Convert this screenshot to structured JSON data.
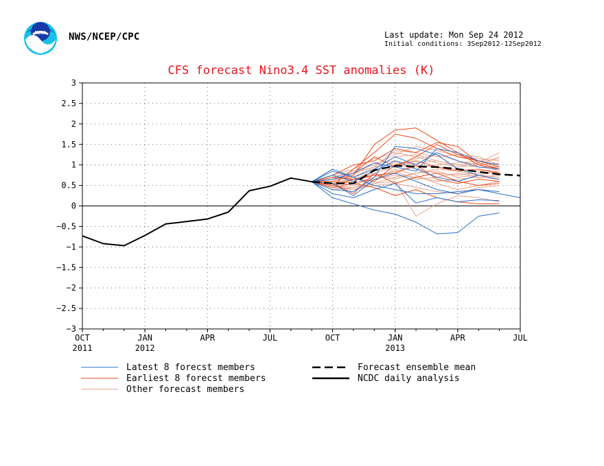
{
  "header": {
    "agency": "NWS/NCEP/CPC",
    "last_update": "Last update: Mon Sep 24 2012",
    "initial_conditions": "Initial conditions: 3Sep2012-12Sep2012",
    "logo_text": "NOAA"
  },
  "colors": {
    "title": "#e8141c",
    "latest": "#2a6fc9",
    "earliest": "#ee4a1a",
    "other": "#e6a28a",
    "mean": "#000000",
    "analysis": "#000000"
  },
  "chart_data": {
    "type": "line",
    "title": "CFS forecast Nino3.4 SST anomalies (K)",
    "xlim": [
      0,
      21
    ],
    "ylim": [
      -3,
      3
    ],
    "yticks": [
      3,
      2.5,
      2,
      1.5,
      1,
      0.5,
      0,
      -0.5,
      -1,
      -1.5,
      -2,
      -2.5,
      -3
    ],
    "xticks": [
      {
        "x": 0,
        "label": "OCT",
        "year": "2011"
      },
      {
        "x": 3,
        "label": "JAN",
        "year": "2012"
      },
      {
        "x": 6,
        "label": "APR",
        "year": ""
      },
      {
        "x": 9,
        "label": "JUL",
        "year": ""
      },
      {
        "x": 12,
        "label": "OCT",
        "year": ""
      },
      {
        "x": 15,
        "label": "JAN",
        "year": "2013"
      },
      {
        "x": 18,
        "label": "APR",
        "year": ""
      },
      {
        "x": 21,
        "label": "JUL",
        "year": ""
      }
    ],
    "grid": true,
    "legend": [
      {
        "label": "Latest 8 forecst members",
        "key": "latest",
        "style": "solid-thin"
      },
      {
        "label": "Earliest 8 forecst members",
        "key": "earliest",
        "style": "solid-thin"
      },
      {
        "label": "Other forecast members",
        "key": "other",
        "style": "solid-thin"
      },
      {
        "label": "Forecast ensemble mean",
        "key": "mean",
        "style": "dashed-thick"
      },
      {
        "label": "NCDC daily analysis",
        "key": "analysis",
        "style": "solid-thick"
      }
    ],
    "analysis": {
      "x": [
        0,
        1,
        2,
        3,
        4,
        5,
        6,
        7,
        8,
        9,
        10,
        11
      ],
      "y": [
        -0.73,
        -0.92,
        -0.97,
        -0.72,
        -0.44,
        -0.38,
        -0.32,
        -0.15,
        0.37,
        0.48,
        0.68,
        0.59
      ]
    },
    "mean": {
      "x": [
        11,
        12,
        13,
        14,
        15,
        16,
        17,
        18,
        19,
        20,
        21
      ],
      "y": [
        0.59,
        0.55,
        0.55,
        0.87,
        0.98,
        0.96,
        0.95,
        0.9,
        0.83,
        0.77,
        0.74
      ]
    },
    "members_x": [
      11,
      12,
      13,
      14,
      15,
      16,
      17,
      18,
      19,
      20,
      21
    ],
    "latest": [
      [
        0.59,
        0.2,
        0.05,
        -0.1,
        -0.2,
        -0.4,
        -0.68,
        -0.65,
        -0.25,
        -0.17
      ],
      [
        0.59,
        0.9,
        0.7,
        0.5,
        0.4,
        0.3,
        0.3,
        0.35,
        0.4,
        0.3,
        0.2
      ],
      [
        0.59,
        0.3,
        0.2,
        0.4,
        0.55,
        0.07,
        0.2,
        0.1,
        0.15,
        0.13
      ],
      [
        0.59,
        0.75,
        0.6,
        0.85,
        1.1,
        0.9,
        0.7,
        0.6,
        0.75,
        0.65
      ],
      [
        0.59,
        0.4,
        0.35,
        0.7,
        1.45,
        1.4,
        1.25,
        0.9,
        0.75
      ],
      [
        0.59,
        0.85,
        0.7,
        0.9,
        1.2,
        1.0,
        1.3,
        1.1,
        0.95,
        0.9
      ],
      [
        0.59,
        0.55,
        0.25,
        0.65,
        0.8,
        0.6,
        0.4,
        0.3,
        0.4,
        0.35
      ],
      [
        0.59,
        0.65,
        0.8,
        1.05,
        0.95,
        0.85,
        1.4,
        1.3,
        1.1,
        1.0
      ]
    ],
    "earliest": [
      [
        0.59,
        0.6,
        0.75,
        1.5,
        1.85,
        1.9,
        1.6,
        1.3,
        1.0,
        0.9
      ],
      [
        0.59,
        0.5,
        0.9,
        1.3,
        1.75,
        1.65,
        1.4,
        1.2,
        1.1,
        0.95
      ],
      [
        0.59,
        0.7,
        0.65,
        0.6,
        1.0,
        1.1,
        0.95,
        0.85,
        0.9,
        0.8
      ],
      [
        0.59,
        0.45,
        0.55,
        0.45,
        0.25,
        0.4,
        0.2,
        0.1,
        0.05,
        0.05
      ],
      [
        0.59,
        0.65,
        0.8,
        1.2,
        0.95,
        1.2,
        1.5,
        1.25,
        1.1,
        0.95
      ],
      [
        0.59,
        0.55,
        0.3,
        0.8,
        0.55,
        0.7,
        0.8,
        0.6,
        0.5,
        0.55
      ],
      [
        0.59,
        0.75,
        1.0,
        1.1,
        1.4,
        1.3,
        1.55,
        1.45,
        1.05,
        0.9
      ],
      [
        0.59,
        0.5,
        0.65,
        0.75,
        0.8,
        1.0,
        0.65,
        0.55,
        0.65,
        0.6
      ]
    ],
    "other": [
      [
        0.59,
        0.55,
        0.7,
        0.9,
        1.2,
        1.25,
        1.1,
        1.0,
        1.05,
        1.3
      ],
      [
        0.59,
        0.6,
        0.5,
        0.7,
        0.85,
        0.95,
        1.0,
        1.05,
        1.1,
        1.15
      ],
      [
        0.59,
        0.45,
        0.4,
        0.55,
        0.6,
        -0.25,
        0.05,
        0.25,
        0.2,
        0.1
      ],
      [
        0.59,
        0.7,
        0.8,
        0.95,
        1.35,
        1.3,
        1.2,
        1.25,
        1.2,
        1.0
      ],
      [
        0.59,
        0.5,
        0.6,
        0.75,
        0.65,
        0.8,
        0.85,
        0.7,
        0.75,
        0.85
      ],
      [
        0.59,
        0.65,
        0.75,
        1.05,
        1.1,
        1.0,
        0.95,
        0.9,
        0.85,
        0.9
      ],
      [
        0.59,
        0.4,
        0.45,
        0.6,
        0.9,
        0.75,
        0.55,
        0.4,
        0.5,
        0.6
      ],
      [
        0.59,
        0.55,
        0.65,
        0.85,
        1.0,
        1.15,
        1.25,
        1.1,
        1.0,
        1.05
      ],
      [
        0.59,
        0.6,
        0.55,
        0.65,
        0.75,
        0.7,
        0.6,
        0.65,
        0.7,
        0.75
      ],
      [
        0.59,
        0.7,
        0.85,
        1.0,
        1.25,
        1.45,
        1.35,
        1.2,
        1.15,
        1.1
      ],
      [
        0.59,
        0.5,
        0.4,
        0.5,
        0.55,
        0.45,
        0.35,
        0.3,
        0.45,
        0.5
      ],
      [
        0.59,
        0.65,
        0.7,
        0.95,
        1.05,
        0.9,
        0.8,
        0.75,
        0.8,
        0.85
      ],
      [
        0.59,
        0.55,
        0.6,
        0.8,
        0.95,
        1.05,
        1.1,
        1.0,
        0.95,
        0.95
      ],
      [
        0.59,
        0.45,
        0.55,
        0.7,
        0.85,
        0.65,
        0.7,
        0.8,
        0.7,
        0.65
      ],
      [
        0.59,
        0.75,
        0.9,
        1.15,
        1.3,
        1.2,
        1.05,
        0.95,
        1.0,
        1.2
      ],
      [
        0.59,
        0.5,
        0.45,
        0.55,
        0.7,
        0.8,
        0.9,
        0.85,
        0.75,
        0.7
      ]
    ]
  }
}
